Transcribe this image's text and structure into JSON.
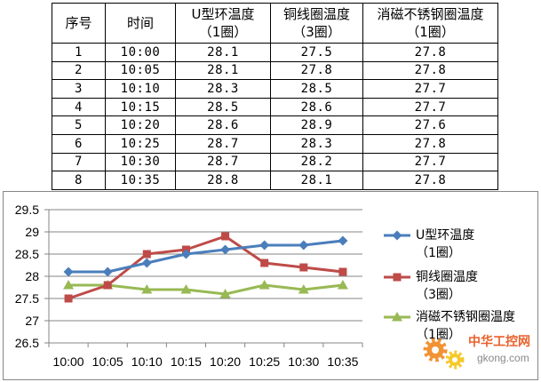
{
  "chart_data": [
    {
      "type": "table",
      "columns": [
        "序号",
        "时间",
        "U型环温度\n（1圈）",
        "铜线圈温度\n（3圈）",
        "消磁不锈钢圈温度\n（1圈）"
      ],
      "rows": [
        [
          "1",
          "10:00",
          "28.1",
          "27.5",
          "27.8"
        ],
        [
          "2",
          "10:05",
          "28.1",
          "27.8",
          "27.8"
        ],
        [
          "3",
          "10:10",
          "28.3",
          "28.5",
          "27.7"
        ],
        [
          "4",
          "10:15",
          "28.5",
          "28.6",
          "27.7"
        ],
        [
          "5",
          "10:20",
          "28.6",
          "28.9",
          "27.6"
        ],
        [
          "6",
          "10:25",
          "28.7",
          "28.3",
          "27.8"
        ],
        [
          "7",
          "10:30",
          "28.7",
          "28.2",
          "27.7"
        ],
        [
          "8",
          "10:35",
          "28.8",
          "28.1",
          "27.8"
        ]
      ]
    },
    {
      "type": "line",
      "categories": [
        "10:00",
        "10:05",
        "10:10",
        "10:15",
        "10:20",
        "10:25",
        "10:30",
        "10:35"
      ],
      "series": [
        {
          "name": "U型环温度\n（1圈）",
          "values": [
            28.1,
            28.1,
            28.3,
            28.5,
            28.6,
            28.7,
            28.7,
            28.8
          ],
          "color": "#4A7EBB",
          "marker": "diamond"
        },
        {
          "name": "铜线圈温度\n（3圈）",
          "values": [
            27.5,
            27.8,
            28.5,
            28.6,
            28.9,
            28.3,
            28.2,
            28.1
          ],
          "color": "#BE4B48",
          "marker": "square"
        },
        {
          "name": "消磁不锈钢圈温度\n（1圈）",
          "values": [
            27.8,
            27.8,
            27.7,
            27.7,
            27.6,
            27.8,
            27.7,
            27.8
          ],
          "color": "#98B954",
          "marker": "triangle"
        }
      ],
      "ylim": [
        26.5,
        29.5
      ],
      "yticks": [
        29.5,
        29,
        28.5,
        28,
        27.5,
        27,
        26.5
      ],
      "grid": true,
      "legend": "right",
      "axis_color": "#868686"
    }
  ],
  "watermark": {
    "name": "中华工控网",
    "domain": "gkong.com",
    "name_color": "#E8541A",
    "domain_color": "#808080",
    "gear_colors": [
      "#F08A24",
      "#F5C518"
    ]
  }
}
